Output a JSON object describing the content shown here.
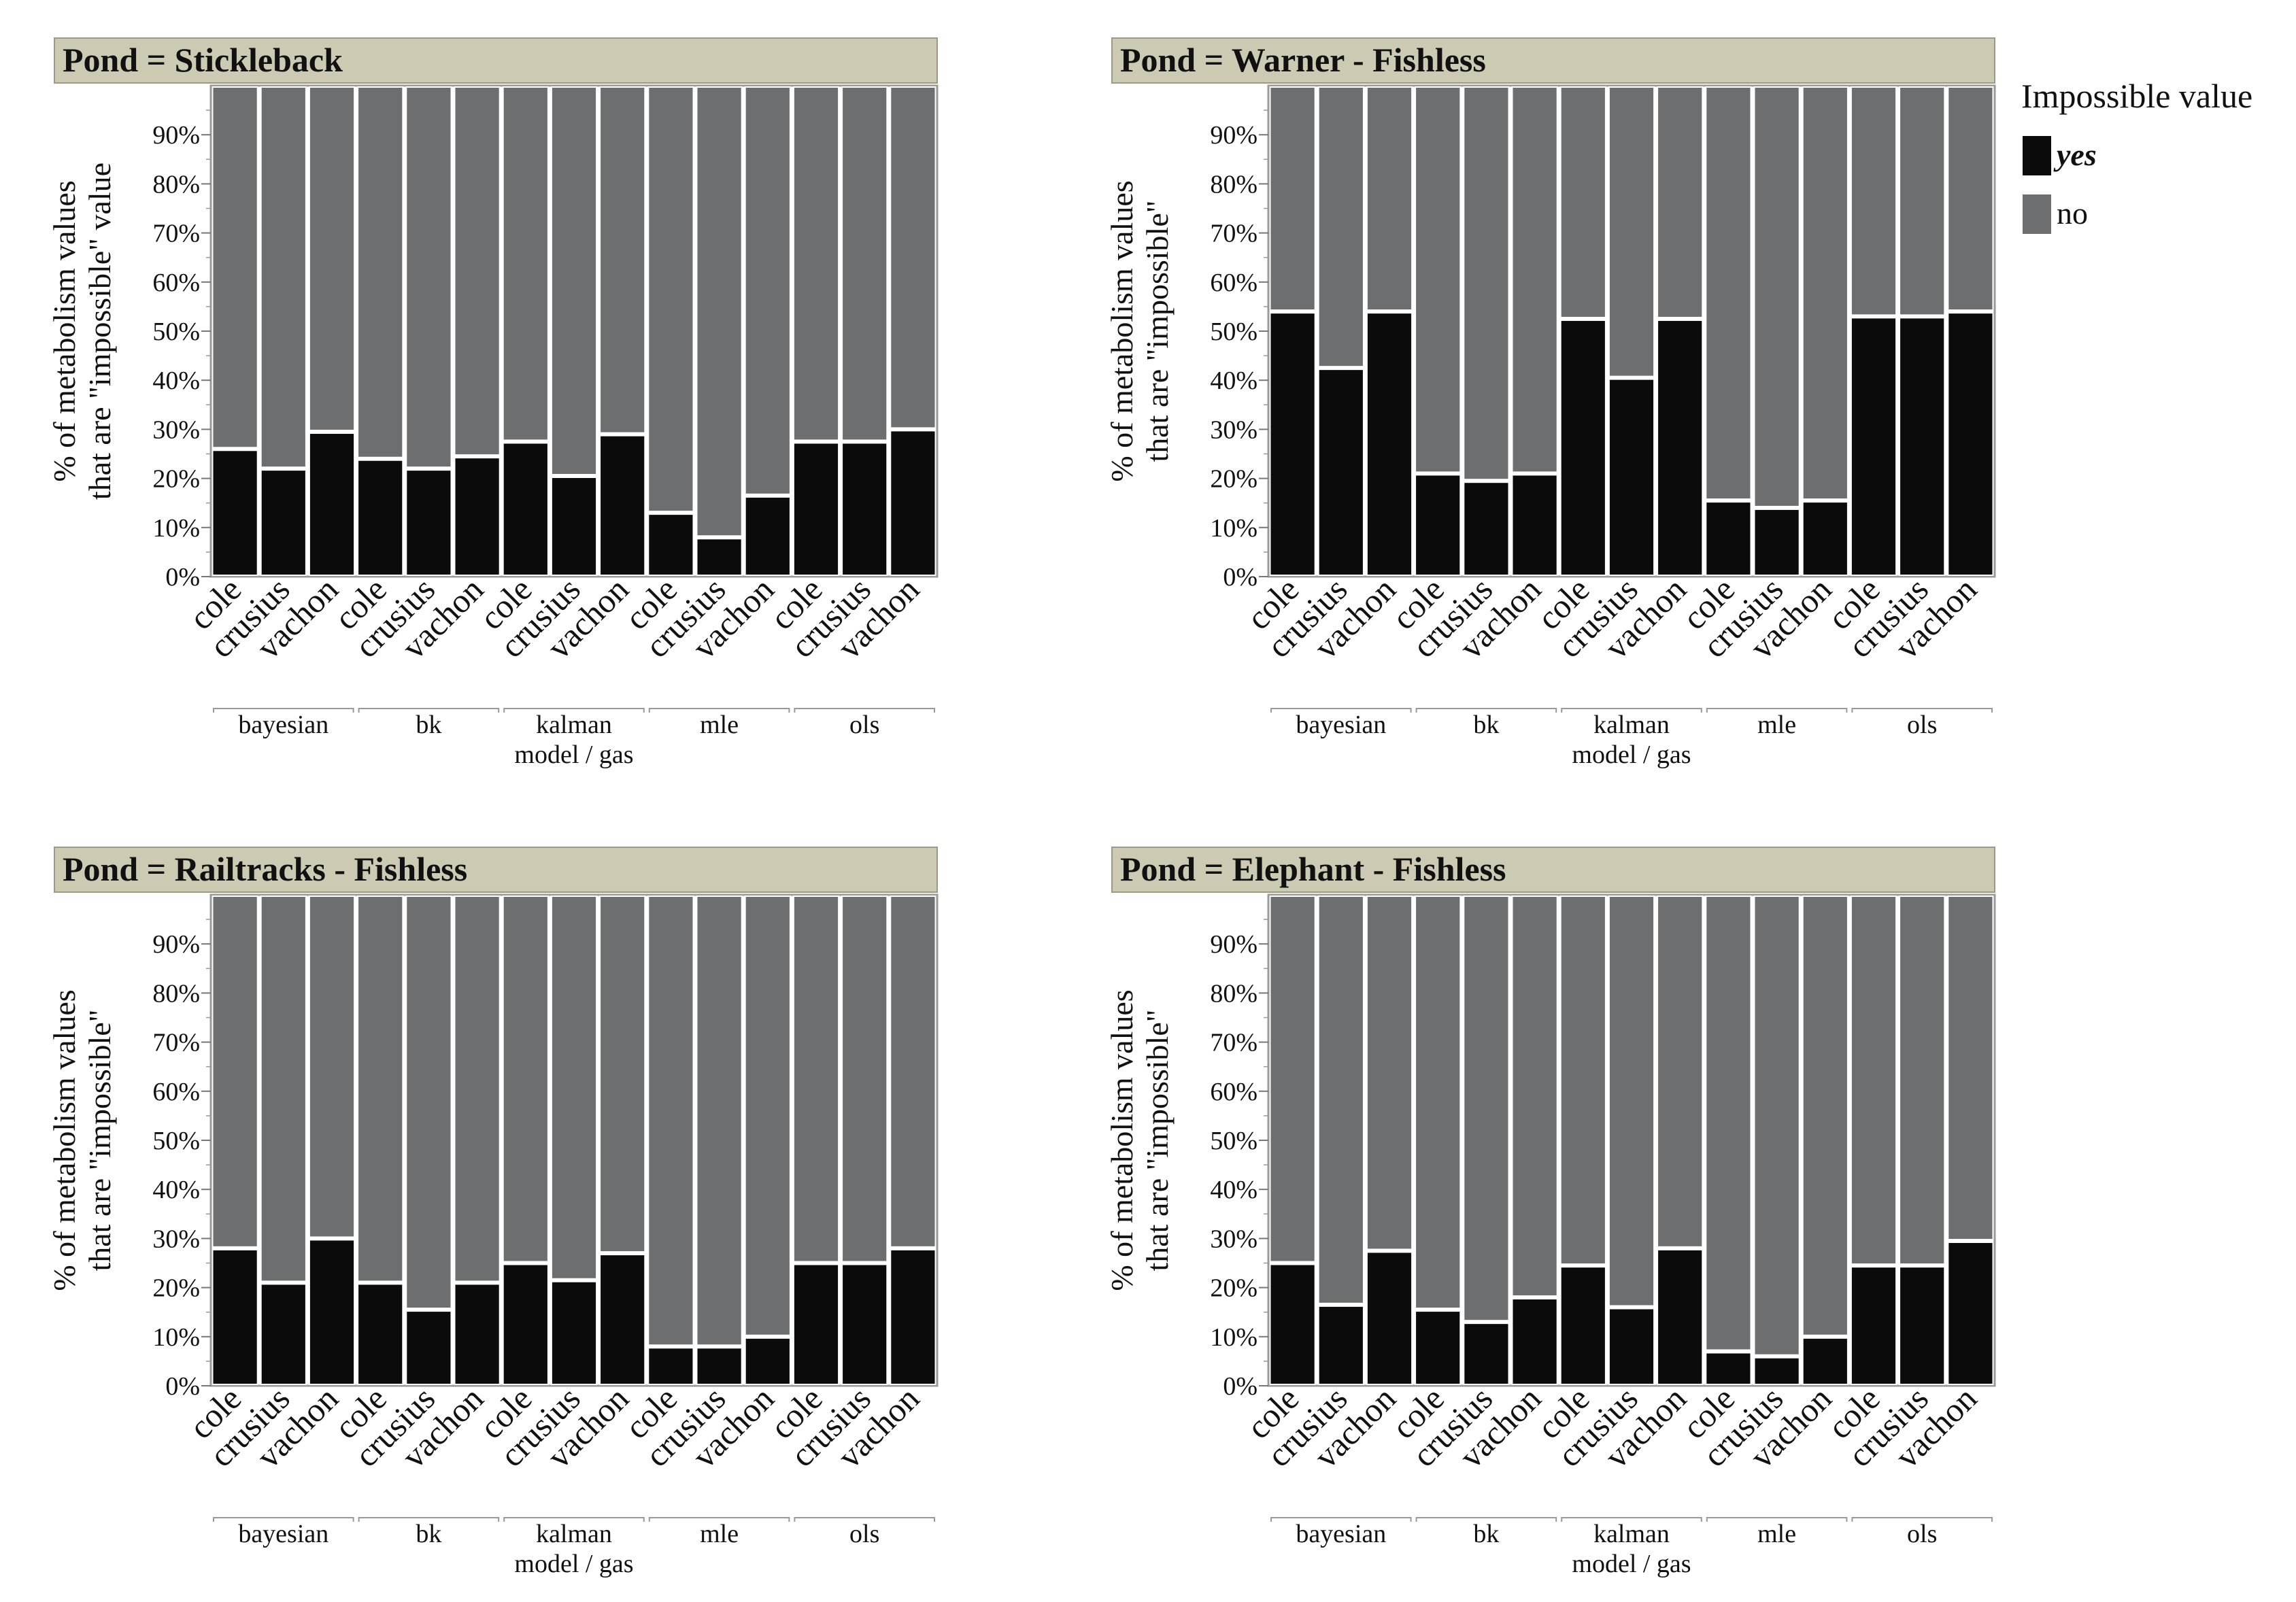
{
  "legend": {
    "title": "Impossible value",
    "items": [
      {
        "label": "yes",
        "color": "#0b0b0b",
        "bold_italic": true
      },
      {
        "label": "no",
        "color": "#6c6e70",
        "bold_italic": false
      }
    ]
  },
  "colors": {
    "yes": "#0b0b0b",
    "no": "#6c6e70",
    "header": "#cccab3",
    "frame": "#9a9a9a"
  },
  "chart_data": [
    {
      "type": "bar",
      "stacked": true,
      "title": "Pond = Stickleback",
      "ylabel_lines": [
        "% of metabolism values",
        "that are \"impossible\" value"
      ],
      "xlabel": "model / gas",
      "groups": [
        "bayesian",
        "bk",
        "kalman",
        "mle",
        "ols"
      ],
      "gases": [
        "cole",
        "crusius",
        "vachon"
      ],
      "ylim": [
        0,
        100
      ],
      "yticks": [
        "0%",
        "10%",
        "20%",
        "30%",
        "40%",
        "50%",
        "60%",
        "70%",
        "80%",
        "90%"
      ],
      "series": [
        {
          "name": "yes",
          "values": [
            26,
            22,
            29.5,
            24,
            22,
            24.5,
            27.5,
            20.5,
            29,
            13,
            8,
            16.5,
            27.5,
            27.5,
            30
          ]
        },
        {
          "name": "no",
          "values": [
            74,
            78,
            70.5,
            76,
            78,
            75.5,
            72.5,
            79.5,
            71,
            87,
            92,
            83.5,
            72.5,
            72.5,
            70
          ]
        }
      ]
    },
    {
      "type": "bar",
      "stacked": true,
      "title": "Pond = Warner - Fishless",
      "ylabel_lines": [
        "% of metabolism values",
        "that are \"impossible\""
      ],
      "xlabel": "model / gas",
      "groups": [
        "bayesian",
        "bk",
        "kalman",
        "mle",
        "ols"
      ],
      "gases": [
        "cole",
        "crusius",
        "vachon"
      ],
      "ylim": [
        0,
        100
      ],
      "yticks": [
        "0%",
        "10%",
        "20%",
        "30%",
        "40%",
        "50%",
        "60%",
        "70%",
        "80%",
        "90%"
      ],
      "series": [
        {
          "name": "yes",
          "values": [
            54,
            42.5,
            54,
            21,
            19.5,
            21,
            52.5,
            40.5,
            52.5,
            15.5,
            14,
            15.5,
            53,
            53,
            54
          ]
        },
        {
          "name": "no",
          "values": [
            46,
            57.5,
            46,
            79,
            80.5,
            79,
            47.5,
            59.5,
            47.5,
            84.5,
            86,
            84.5,
            47,
            47,
            46
          ]
        }
      ]
    },
    {
      "type": "bar",
      "stacked": true,
      "title": "Pond = Railtracks - Fishless",
      "ylabel_lines": [
        "% of metabolism values",
        "that are \"impossible\""
      ],
      "xlabel": "model / gas",
      "groups": [
        "bayesian",
        "bk",
        "kalman",
        "mle",
        "ols"
      ],
      "gases": [
        "cole",
        "crusius",
        "vachon"
      ],
      "ylim": [
        0,
        100
      ],
      "yticks": [
        "0%",
        "10%",
        "20%",
        "30%",
        "40%",
        "50%",
        "60%",
        "70%",
        "80%",
        "90%"
      ],
      "series": [
        {
          "name": "yes",
          "values": [
            28,
            21,
            30,
            21,
            15.5,
            21,
            25,
            21.5,
            27,
            8,
            8,
            10,
            25,
            25,
            28
          ]
        },
        {
          "name": "no",
          "values": [
            72,
            79,
            70,
            79,
            84.5,
            79,
            75,
            78.5,
            73,
            92,
            92,
            90,
            75,
            75,
            72
          ]
        }
      ]
    },
    {
      "type": "bar",
      "stacked": true,
      "title": "Pond = Elephant - Fishless",
      "ylabel_lines": [
        "% of metabolism values",
        "that are \"impossible\""
      ],
      "xlabel": "model / gas",
      "groups": [
        "bayesian",
        "bk",
        "kalman",
        "mle",
        "ols"
      ],
      "gases": [
        "cole",
        "crusius",
        "vachon"
      ],
      "ylim": [
        0,
        100
      ],
      "yticks": [
        "0%",
        "10%",
        "20%",
        "30%",
        "40%",
        "50%",
        "60%",
        "70%",
        "80%",
        "90%"
      ],
      "series": [
        {
          "name": "yes",
          "values": [
            25,
            16.5,
            27.5,
            15.5,
            13,
            18,
            24.5,
            16,
            28,
            7,
            6,
            10,
            24.5,
            24.5,
            29.5
          ]
        },
        {
          "name": "no",
          "values": [
            75,
            83.5,
            72.5,
            84.5,
            87,
            82,
            75.5,
            84,
            72,
            93,
            94,
            90,
            75.5,
            75.5,
            70.5
          ]
        }
      ]
    }
  ]
}
